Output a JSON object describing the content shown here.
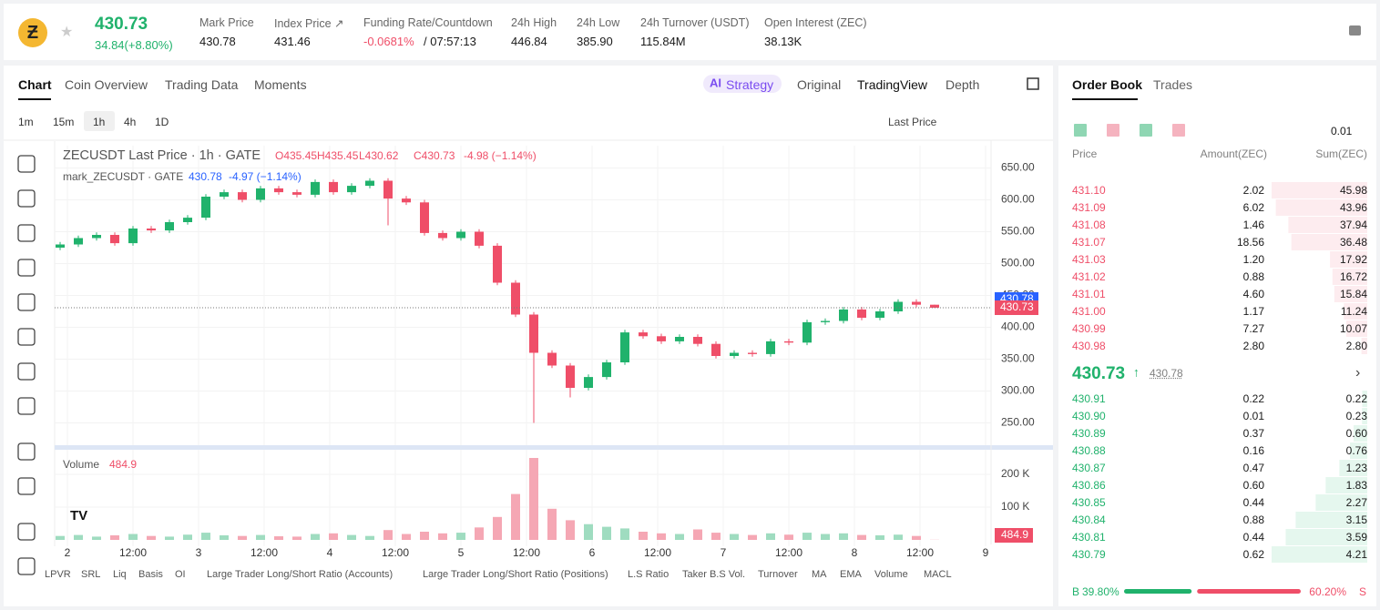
{
  "header": {
    "price": "430.73",
    "change": "34.84(+8.80%)",
    "stats": [
      {
        "label": "Mark Price",
        "value": "430.78"
      },
      {
        "label": "Index Price ↗",
        "value": "431.46"
      },
      {
        "label": "Funding Rate/Countdown",
        "value": "-0.0681%",
        "extra": "/ 07:57:13"
      },
      {
        "label": "24h High",
        "value": "446.84"
      },
      {
        "label": "24h Low",
        "value": "385.90"
      },
      {
        "label": "24h Turnover (USDT)",
        "value": "115.84M"
      },
      {
        "label": "Open Interest (ZEC)",
        "value": "38.13K"
      }
    ]
  },
  "tabs": [
    "Chart",
    "Coin Overview",
    "Trading Data",
    "Moments"
  ],
  "views": [
    "Strategy",
    "Original",
    "TradingView",
    "Depth"
  ],
  "intervals": [
    "1m",
    "15m",
    "1h",
    "4h",
    "1D"
  ],
  "price_source": "Last Price",
  "legend": {
    "title": "ZECUSDT Last Price · 1h · GATE",
    "ohlc": [
      "O435.45",
      "H435.45",
      "L430.62",
      "C430.73"
    ],
    "change": "-4.98 (−1.14%)",
    "mark_title": "mark_ZECUSDT · GATE",
    "mark_value": "430.78",
    "mark_change": "-4.97 (−1.14%)"
  },
  "chart": {
    "candles": [
      [
        525,
        534,
        521,
        530
      ],
      [
        530,
        544,
        526,
        540
      ],
      [
        540,
        549,
        536,
        545
      ],
      [
        545,
        549,
        528,
        532
      ],
      [
        532,
        559,
        528,
        555
      ],
      [
        555,
        559,
        548,
        552
      ],
      [
        552,
        569,
        548,
        565
      ],
      [
        565,
        576,
        561,
        572
      ],
      [
        572,
        609,
        568,
        605
      ],
      [
        605,
        616,
        601,
        612
      ],
      [
        612,
        616,
        596,
        600
      ],
      [
        600,
        622,
        596,
        618
      ],
      [
        618,
        622,
        608,
        612
      ],
      [
        612,
        616,
        604,
        608
      ],
      [
        608,
        632,
        604,
        628
      ],
      [
        628,
        632,
        608,
        612
      ],
      [
        612,
        626,
        608,
        622
      ],
      [
        622,
        634,
        618,
        630
      ],
      [
        630,
        634,
        560,
        602
      ],
      [
        602,
        606,
        592,
        596
      ],
      [
        596,
        600,
        544,
        548
      ],
      [
        548,
        552,
        536,
        540
      ],
      [
        540,
        554,
        536,
        550
      ],
      [
        550,
        554,
        524,
        528
      ],
      [
        528,
        532,
        466,
        470
      ],
      [
        470,
        474,
        416,
        420
      ],
      [
        420,
        424,
        250,
        360
      ],
      [
        360,
        364,
        336,
        340
      ],
      [
        340,
        344,
        290,
        305
      ],
      [
        305,
        326,
        301,
        322
      ],
      [
        322,
        349,
        318,
        345
      ],
      [
        345,
        396,
        341,
        392
      ],
      [
        392,
        396,
        382,
        386
      ],
      [
        386,
        390,
        374,
        378
      ],
      [
        378,
        389,
        374,
        385
      ],
      [
        385,
        389,
        370,
        374
      ],
      [
        374,
        378,
        351,
        355
      ],
      [
        355,
        364,
        351,
        360
      ],
      [
        360,
        364,
        354,
        358
      ],
      [
        358,
        382,
        354,
        378
      ],
      [
        378,
        382,
        372,
        376
      ],
      [
        376,
        412,
        372,
        408
      ],
      [
        408,
        414,
        404,
        410
      ],
      [
        410,
        432,
        406,
        428
      ],
      [
        428,
        432,
        411,
        415
      ],
      [
        415,
        429,
        411,
        425
      ],
      [
        425,
        444,
        421,
        440
      ],
      [
        440,
        444,
        431.45,
        435.45
      ],
      [
        435.45,
        435.45,
        430.62,
        430.73
      ]
    ],
    "ylim": [
      215,
      685
    ],
    "yticks": [
      {
        "value": 650,
        "label": "650.00"
      },
      {
        "value": 600,
        "label": "600.00"
      },
      {
        "value": 550,
        "label": "550.00"
      },
      {
        "value": 500,
        "label": "500.00"
      },
      {
        "value": 450,
        "label": "450.00"
      },
      {
        "value": 400,
        "label": "400.00"
      },
      {
        "value": 350,
        "label": "350.00"
      },
      {
        "value": 300,
        "label": "300.00"
      },
      {
        "value": 250,
        "label": "250.00"
      }
    ],
    "mark_price": 430.78,
    "last_price": 430.73,
    "volume_label": "Volume",
    "volume_value": "484.9",
    "volumes": [
      12000,
      15000,
      10000,
      14000,
      18000,
      12000,
      10000,
      16000,
      22000,
      14000,
      12000,
      15000,
      11000,
      10000,
      18000,
      20000,
      15000,
      12000,
      30000,
      18000,
      25000,
      20000,
      22000,
      38000,
      70000,
      140000,
      250000,
      95000,
      60000,
      48000,
      40000,
      35000,
      25000,
      20000,
      18000,
      32000,
      22000,
      18000,
      15000,
      20000,
      16000,
      22000,
      18000,
      20000,
      15000,
      14000,
      16000,
      12000,
      484.9
    ],
    "vlim": [
      0,
      265000
    ],
    "vticks": [
      {
        "value": 200000,
        "label": "200 K"
      },
      {
        "value": 100000,
        "label": "100 K"
      }
    ],
    "xticks": [
      "2",
      "12:00",
      "3",
      "12:00",
      "4",
      "12:00",
      "5",
      "12:00",
      "6",
      "12:00",
      "7",
      "12:00",
      "8",
      "12:00",
      "9"
    ]
  },
  "indicators": [
    "LPVR",
    "SRL",
    "Liq",
    "Basis",
    "OI",
    "Large Trader Long/Short Ratio (Accounts)",
    "Large Trader Long/Short Ratio (Positions)",
    "L.S Ratio",
    "Taker B.S Vol.",
    "Turnover",
    "MA",
    "EMA",
    "Volume",
    "MACL"
  ],
  "order_book": {
    "tabs": [
      "Order Book",
      "Trades"
    ],
    "precision": "0.01",
    "columns": [
      "Price",
      "Amount(ZEC)",
      "Sum(ZEC)"
    ],
    "asks": [
      [
        "431.10",
        "2.02",
        "45.98"
      ],
      [
        "431.09",
        "6.02",
        "43.96"
      ],
      [
        "431.08",
        "1.46",
        "37.94"
      ],
      [
        "431.07",
        "18.56",
        "36.48"
      ],
      [
        "431.03",
        "1.20",
        "17.92"
      ],
      [
        "431.02",
        "0.88",
        "16.72"
      ],
      [
        "431.01",
        "4.60",
        "15.84"
      ],
      [
        "431.00",
        "1.17",
        "11.24"
      ],
      [
        "430.99",
        "7.27",
        "10.07"
      ],
      [
        "430.98",
        "2.80",
        "2.80"
      ]
    ],
    "last": "430.73",
    "mark": "430.78",
    "bids": [
      [
        "430.91",
        "0.22",
        "0.22"
      ],
      [
        "430.90",
        "0.01",
        "0.23"
      ],
      [
        "430.89",
        "0.37",
        "0.60"
      ],
      [
        "430.88",
        "0.16",
        "0.76"
      ],
      [
        "430.87",
        "0.47",
        "1.23"
      ],
      [
        "430.86",
        "0.60",
        "1.83"
      ],
      [
        "430.85",
        "0.44",
        "2.27"
      ],
      [
        "430.84",
        "0.88",
        "3.15"
      ],
      [
        "430.81",
        "0.44",
        "3.59"
      ],
      [
        "430.79",
        "0.62",
        "4.21"
      ]
    ],
    "buy_label": "B",
    "buy_ratio": "39.80%",
    "sell_ratio": "60.20%",
    "sell_label": "S"
  }
}
